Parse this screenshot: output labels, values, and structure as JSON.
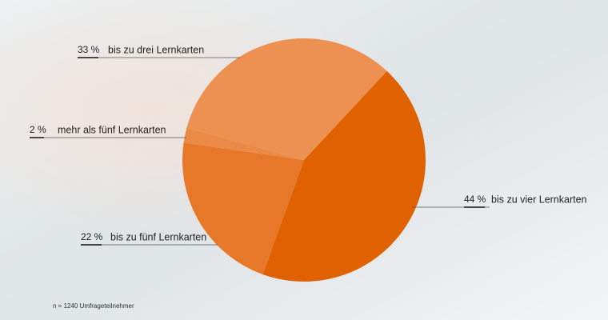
{
  "chart_data": {
    "type": "pie",
    "categories": [
      "bis zu vier Lernkarten",
      "bis zu fünf Lernkarten",
      "mehr als fünf Lernkarten",
      "bis zu drei Lernkarten"
    ],
    "values": [
      44,
      22,
      2,
      33
    ],
    "value_labels": [
      "44 %",
      "22 %",
      "2 %",
      "33 %"
    ],
    "colors": [
      "#e06100",
      "#e77829",
      "#ea8a46",
      "#ec9152"
    ],
    "note": "n = 1240 Umfrageteilnehmer"
  }
}
